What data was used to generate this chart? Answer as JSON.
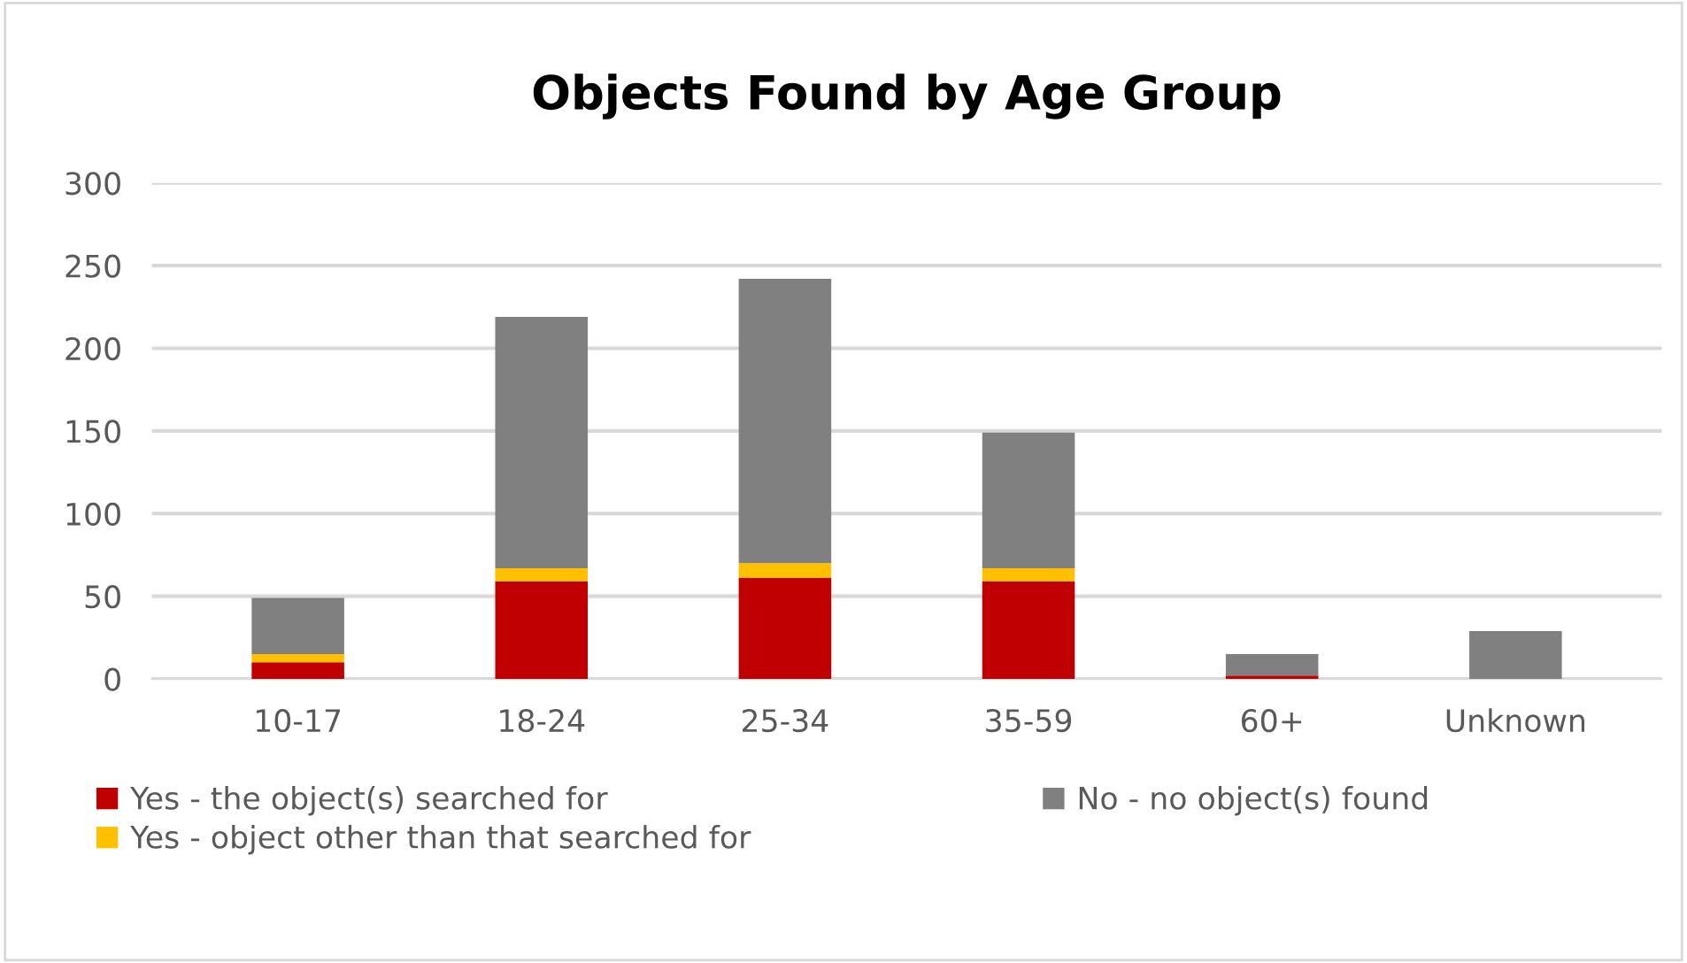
{
  "chart_data": {
    "type": "bar",
    "title": "Objects Found by Age Group",
    "stacked": true,
    "categories": [
      "10-17",
      "18-24",
      "25-34",
      "35-59",
      "60+",
      "Unknown"
    ],
    "series": [
      {
        "name": "Yes - the object(s) searched for",
        "color": "#c00000",
        "values": [
          10,
          59,
          61,
          59,
          2,
          0
        ]
      },
      {
        "name": "Yes - object other than that searched for",
        "color": "#ffc000",
        "values": [
          5,
          8,
          9,
          8,
          0,
          0
        ]
      },
      {
        "name": "No - no object(s) found",
        "color": "#808080",
        "values": [
          34,
          152,
          172,
          82,
          13,
          29
        ]
      }
    ],
    "ylim": [
      0,
      300
    ],
    "yticks": [
      0,
      50,
      100,
      150,
      200,
      250,
      300
    ],
    "grid": "y",
    "legend": "bottom"
  }
}
